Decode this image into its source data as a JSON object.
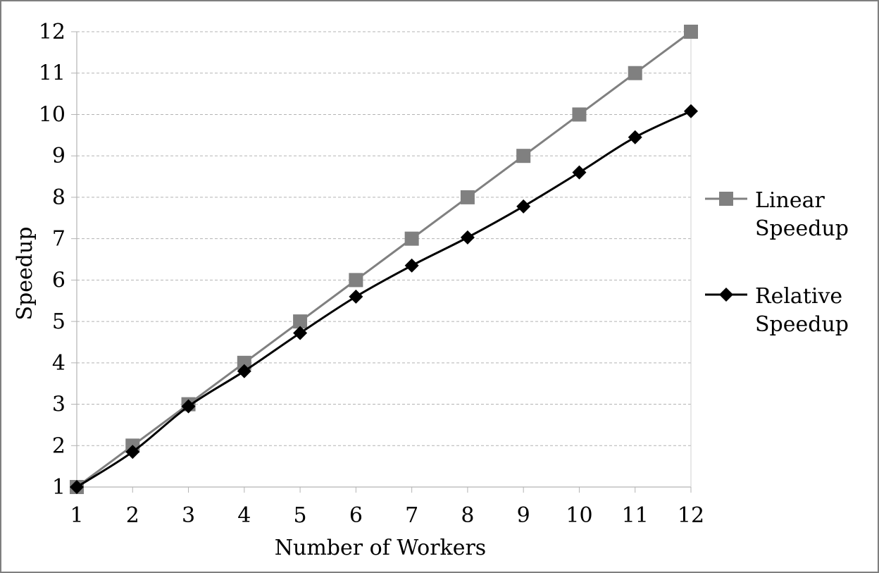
{
  "chart_data": {
    "type": "line",
    "title": "",
    "xlabel": "Number of Workers",
    "ylabel": "Speedup",
    "x": [
      1,
      2,
      3,
      4,
      5,
      6,
      7,
      8,
      9,
      10,
      11,
      12
    ],
    "xlim": [
      1,
      12
    ],
    "ylim": [
      1,
      12
    ],
    "yticks": [
      1,
      2,
      3,
      4,
      5,
      6,
      7,
      8,
      9,
      10,
      11,
      12
    ],
    "grid": "horizontal dashed",
    "legend_position": "right",
    "series": [
      {
        "name_lines": [
          "Linear",
          "Speedup"
        ],
        "marker": "square",
        "color": "#808080",
        "values": [
          1,
          2,
          3,
          4,
          5,
          6,
          7,
          8,
          9,
          10,
          11,
          12
        ]
      },
      {
        "name_lines": [
          "Relative",
          "Speedup"
        ],
        "marker": "diamond",
        "color": "#000000",
        "values": [
          1,
          1.85,
          2.95,
          3.8,
          4.72,
          5.6,
          6.35,
          7.03,
          7.78,
          8.6,
          9.45,
          10.08
        ]
      }
    ]
  }
}
